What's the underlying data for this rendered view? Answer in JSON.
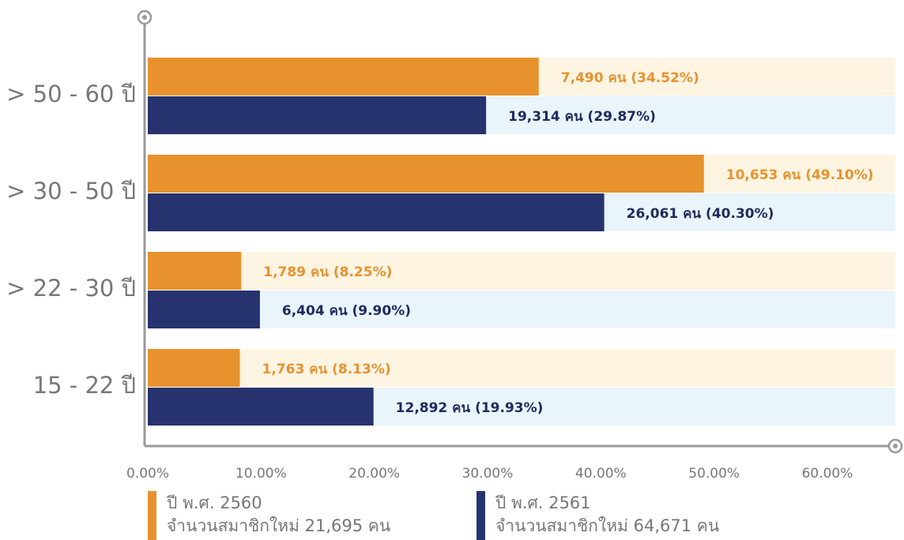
{
  "chart_data": {
    "type": "hbar",
    "categories": [
      "> 50 - 60 ปี",
      "> 30 - 50 ปี",
      "> 22 - 30 ปี",
      "15 - 22 ปี"
    ],
    "series": [
      {
        "name": "ปี พ.ศ. 2560",
        "legend_note": "จำนวนสมาชิกใหม่ 21,695 คน",
        "color": "#e8922e",
        "label_color": "#e8922e",
        "track_color": "#fdf4e2",
        "values": [
          34.52,
          49.1,
          8.25,
          8.13
        ],
        "value_labels": [
          "7,490 คน (34.52%)",
          "10,653 คน (49.10%)",
          "1,789 คน (8.25%)",
          "1,763 คน (8.13%)"
        ]
      },
      {
        "name": "ปี พ.ศ. 2561",
        "legend_note": "จำนวนสมาชิกใหม่ 64,671 คน",
        "color": "#27336e",
        "label_color": "#1e2a5e",
        "track_color": "#e9f4fb",
        "values": [
          29.87,
          40.3,
          9.9,
          19.93
        ],
        "value_labels": [
          "19,314 คน (29.87%)",
          "26,061 คน (40.30%)",
          "6,404 คน (9.90%)",
          "12,892 คน (19.93%)"
        ]
      }
    ],
    "xlim": [
      0,
      66
    ],
    "xticks": [
      {
        "value": 0,
        "label": "0.00%"
      },
      {
        "value": 10,
        "label": "10.00%"
      },
      {
        "value": 20,
        "label": "20.00%"
      },
      {
        "value": 30,
        "label": "30.00%"
      },
      {
        "value": 40,
        "label": "40.00%"
      },
      {
        "value": 50,
        "label": "50.00%"
      },
      {
        "value": 60,
        "label": "60.00%"
      }
    ]
  }
}
